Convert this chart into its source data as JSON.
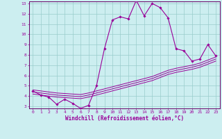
{
  "xlabel": "Windchill (Refroidissement éolien,°C)",
  "bg_color": "#cceef0",
  "line_color": "#990099",
  "grid_color": "#99cccc",
  "x_values": [
    0,
    1,
    2,
    3,
    4,
    5,
    6,
    7,
    8,
    9,
    10,
    11,
    12,
    13,
    14,
    15,
    16,
    17,
    18,
    19,
    20,
    21,
    22,
    23
  ],
  "main_y": [
    4.5,
    4.1,
    3.9,
    3.2,
    3.7,
    3.3,
    2.8,
    3.1,
    5.0,
    8.6,
    11.4,
    11.7,
    11.5,
    13.3,
    11.8,
    13.0,
    12.6,
    11.6,
    8.6,
    8.4,
    7.4,
    7.6,
    9.0,
    7.9
  ],
  "line1_y": [
    4.6,
    4.5,
    4.4,
    4.3,
    4.25,
    4.2,
    4.15,
    4.3,
    4.5,
    4.7,
    4.9,
    5.1,
    5.3,
    5.5,
    5.7,
    5.9,
    6.2,
    6.5,
    6.7,
    6.85,
    7.0,
    7.2,
    7.5,
    7.8
  ],
  "line2_y": [
    4.4,
    4.3,
    4.2,
    4.1,
    4.05,
    4.0,
    3.95,
    4.1,
    4.3,
    4.5,
    4.7,
    4.9,
    5.1,
    5.3,
    5.5,
    5.7,
    6.0,
    6.3,
    6.5,
    6.65,
    6.8,
    7.0,
    7.3,
    7.6
  ],
  "line3_y": [
    4.2,
    4.1,
    4.0,
    3.9,
    3.85,
    3.8,
    3.75,
    3.9,
    4.1,
    4.3,
    4.5,
    4.7,
    4.9,
    5.1,
    5.3,
    5.5,
    5.8,
    6.1,
    6.3,
    6.45,
    6.6,
    6.8,
    7.1,
    7.4
  ],
  "ylim_min": 3,
  "ylim_max": 13,
  "xlim_min": -0.5,
  "xlim_max": 23.5,
  "yticks": [
    3,
    4,
    5,
    6,
    7,
    8,
    9,
    10,
    11,
    12,
    13
  ],
  "xticks": [
    0,
    1,
    2,
    3,
    4,
    5,
    6,
    7,
    8,
    9,
    10,
    11,
    12,
    13,
    14,
    15,
    16,
    17,
    18,
    19,
    20,
    21,
    22,
    23
  ],
  "tick_color": "#990099",
  "axis_color": "#660066",
  "font_color": "#990099"
}
